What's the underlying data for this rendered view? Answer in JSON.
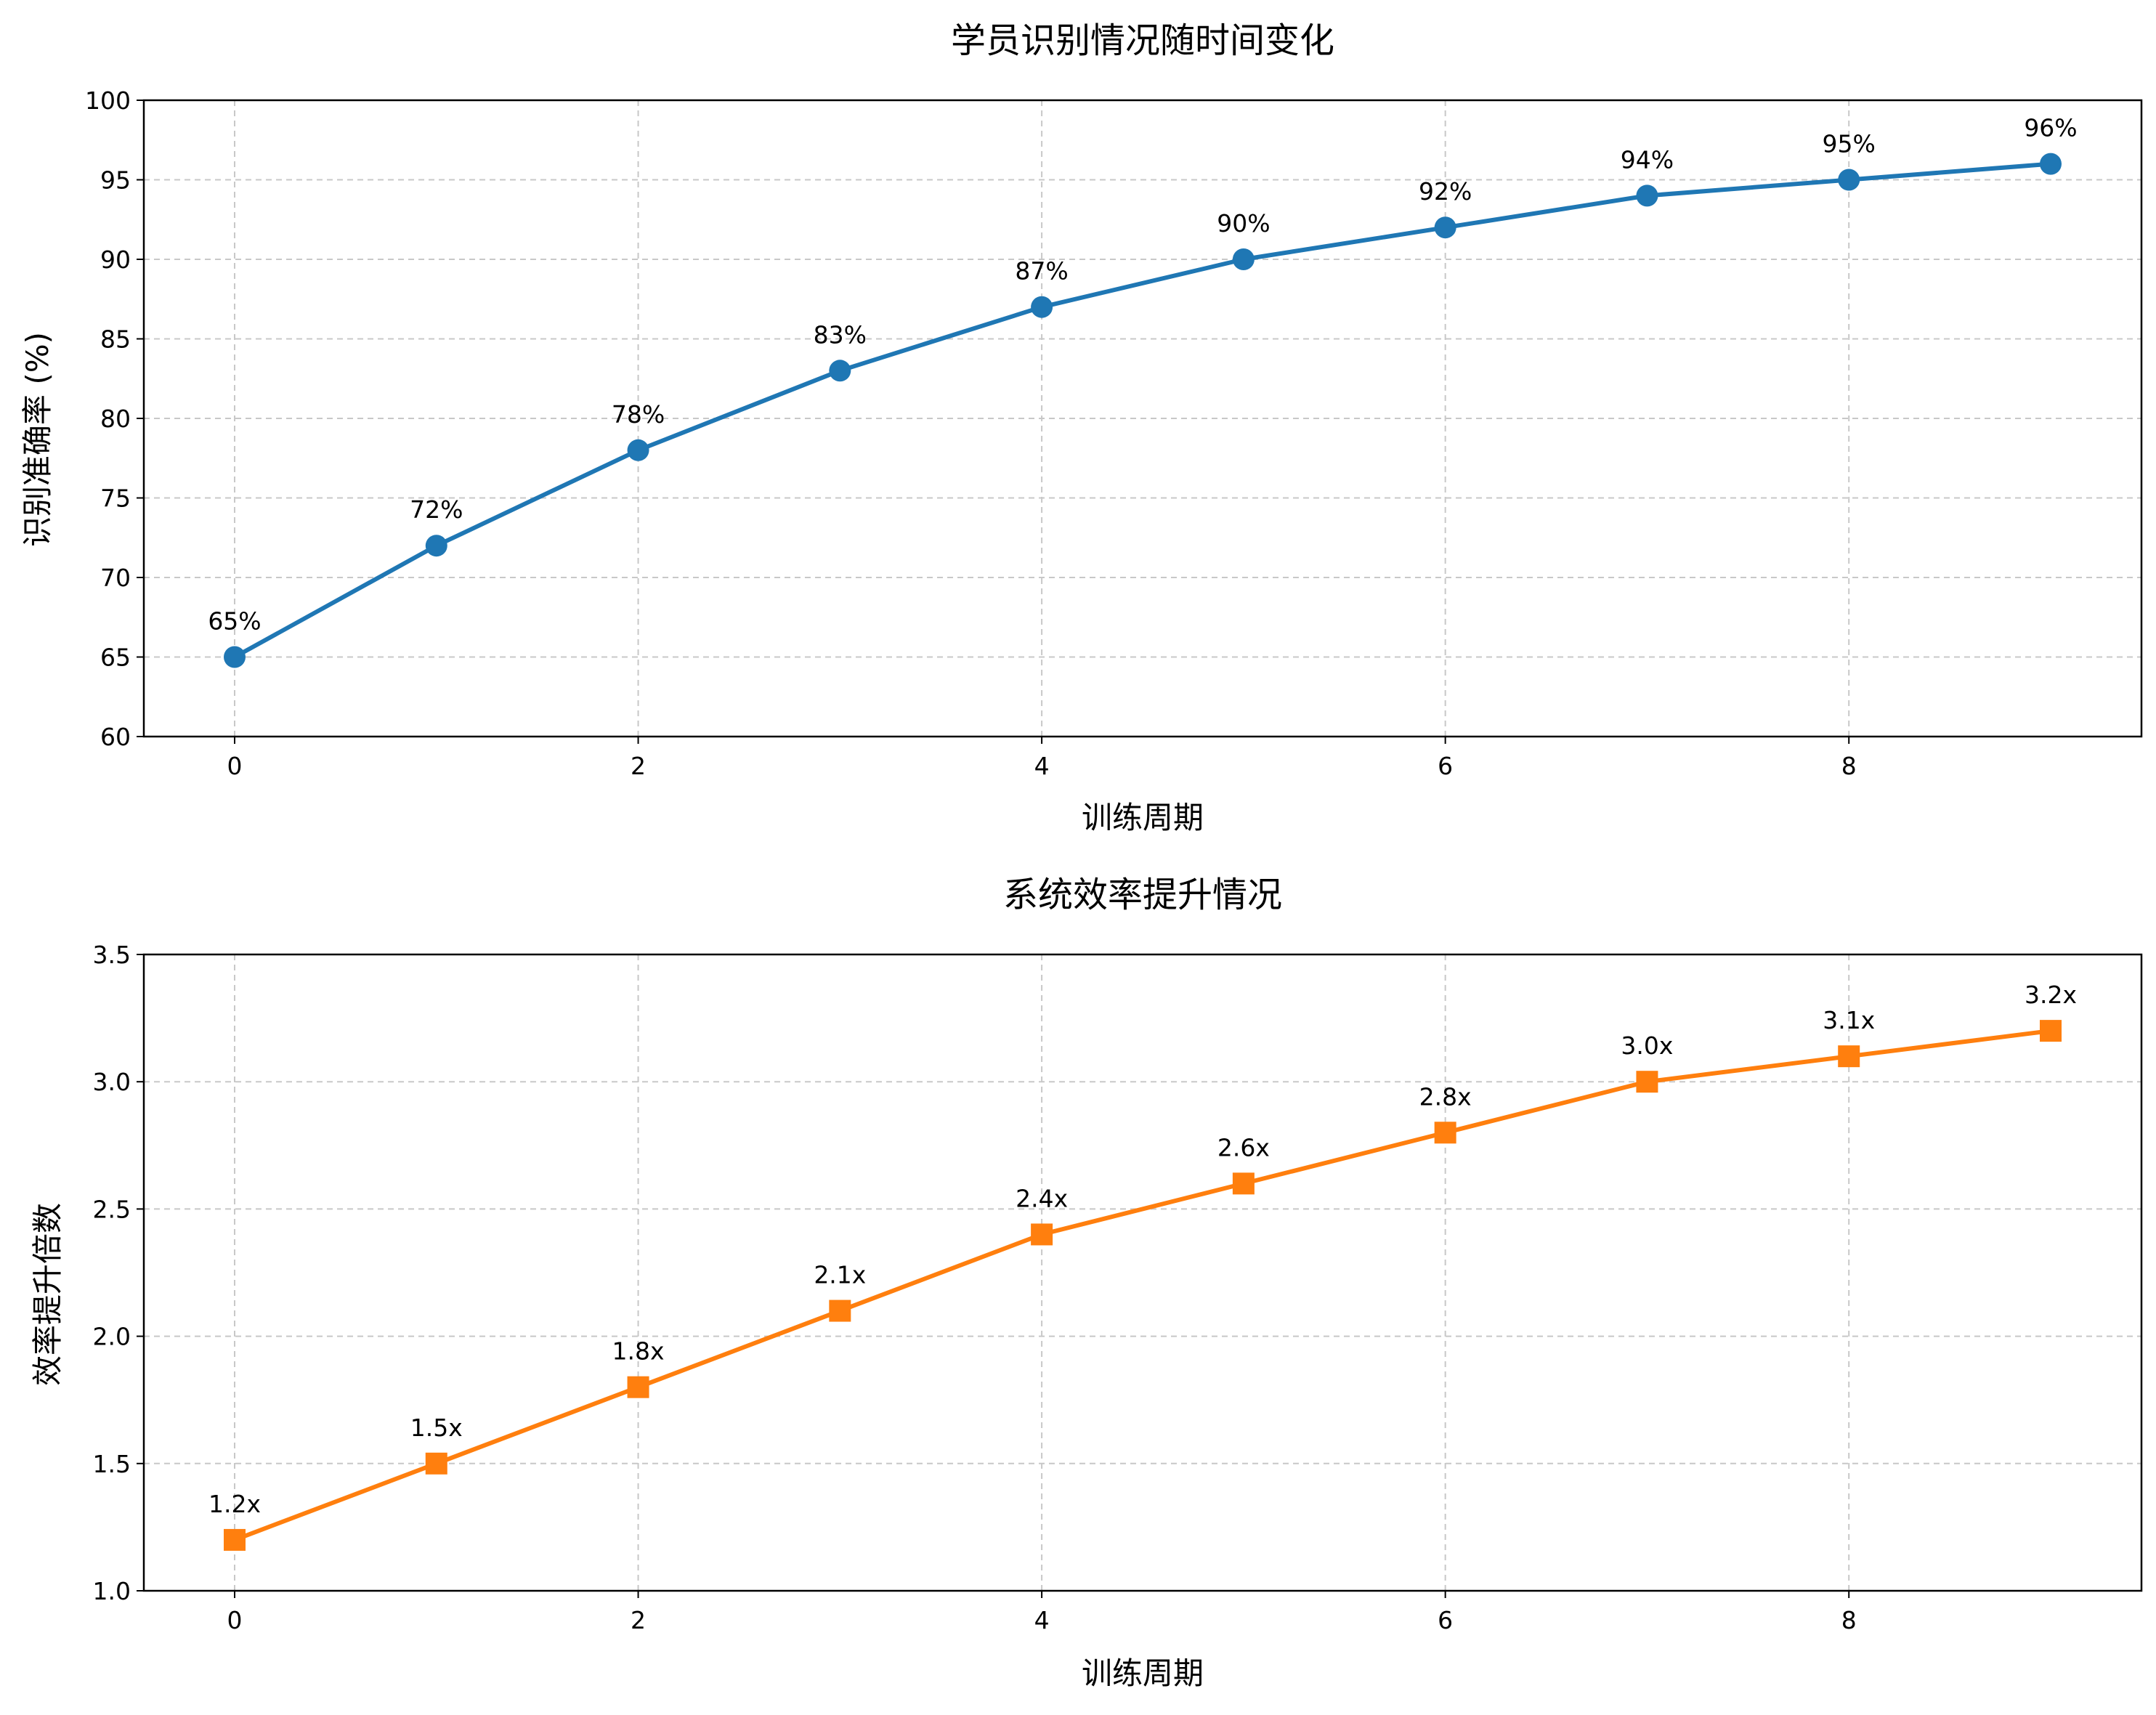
{
  "chart_data": [
    {
      "type": "line",
      "title": "学员识别情况随时间变化",
      "xlabel": "训练周期",
      "ylabel": "识别准确率 (%)",
      "x": [
        0,
        1,
        2,
        3,
        4,
        5,
        6,
        7,
        8,
        9
      ],
      "values": [
        65,
        72,
        78,
        83,
        87,
        90,
        92,
        94,
        95,
        96
      ],
      "data_labels": [
        "65%",
        "72%",
        "78%",
        "83%",
        "87%",
        "90%",
        "92%",
        "94%",
        "95%",
        "96%"
      ],
      "xlim": [
        -0.45,
        9.45
      ],
      "ylim": [
        60,
        100
      ],
      "xticks": [
        0,
        2,
        4,
        6,
        8
      ],
      "xtick_labels": [
        "0",
        "2",
        "4",
        "6",
        "8"
      ],
      "yticks": [
        60,
        65,
        70,
        75,
        80,
        85,
        90,
        95,
        100
      ],
      "ytick_labels": [
        "60",
        "65",
        "70",
        "75",
        "80",
        "85",
        "90",
        "95",
        "100"
      ],
      "grid": true,
      "marker": "circle",
      "color": "#1f77b4"
    },
    {
      "type": "line",
      "title": "系统效率提升情况",
      "xlabel": "训练周期",
      "ylabel": "效率提升倍数",
      "x": [
        0,
        1,
        2,
        3,
        4,
        5,
        6,
        7,
        8,
        9
      ],
      "values": [
        1.2,
        1.5,
        1.8,
        2.1,
        2.4,
        2.6,
        2.8,
        3.0,
        3.1,
        3.2
      ],
      "data_labels": [
        "1.2x",
        "1.5x",
        "1.8x",
        "2.1x",
        "2.4x",
        "2.6x",
        "2.8x",
        "3.0x",
        "3.1x",
        "3.2x"
      ],
      "xlim": [
        -0.45,
        9.45
      ],
      "ylim": [
        1.0,
        3.5
      ],
      "xticks": [
        0,
        2,
        4,
        6,
        8
      ],
      "xtick_labels": [
        "0",
        "2",
        "4",
        "6",
        "8"
      ],
      "yticks": [
        1.0,
        1.5,
        2.0,
        2.5,
        3.0,
        3.5
      ],
      "ytick_labels": [
        "1.0",
        "1.5",
        "2.0",
        "2.5",
        "3.0",
        "3.5"
      ],
      "grid": true,
      "marker": "square",
      "color": "#ff7f0e"
    }
  ]
}
